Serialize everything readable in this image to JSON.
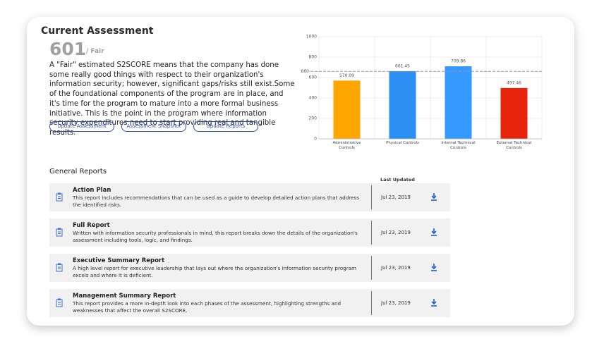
{
  "header": {
    "title": "Current Assessment",
    "score": "601",
    "rating": "/ Fair",
    "description": "A \"Fair\" estimated S2SCORE means that the company has done some really good things with respect to their organization's information security; however, significant gaps/risks still exist.Some of the foundational components of the program are in place, and it's time for the program to mature into a more formal business initiative. This is the point in the program where information security expenditures need to start providing real and tangible results."
  },
  "buttons": [
    "Update Assessment",
    "Assessment Snapshot",
    "Update Reports"
  ],
  "chart_data": {
    "type": "bar",
    "categories": [
      "Administrative Controls",
      "Physical Controls",
      "Internal Technical Controls",
      "External Technical Controls"
    ],
    "values": [
      570.09,
      661.45,
      709.86,
      497.46
    ],
    "colors": [
      "#ffa600",
      "#2b8ff3",
      "#3399ff",
      "#e8240c"
    ],
    "ylim": [
      0,
      1000
    ],
    "yticks": [
      0,
      200,
      400,
      600,
      800,
      1000
    ],
    "grid": true,
    "reference_line": {
      "value": 660,
      "color": "#999999"
    }
  },
  "reports": {
    "title": "General Reports",
    "column_header": "Last Updated",
    "rows": [
      {
        "title": "Action Plan",
        "description": "This report includes recommendations that can be used as a guide to develop detailed action plans that address the identified risks.",
        "date": "Jul 23, 2019"
      },
      {
        "title": "Full Report",
        "description": "Written with information security professionals in mind, this report breaks down the details of the organization's assessment including tools, logic, and findings.",
        "date": "Jul 23, 2019"
      },
      {
        "title": "Executive Summary Report",
        "description": "A high level report for executive leadership that lays out where the organization's information security program excels and where it is deficient.",
        "date": "Jul 23, 2019"
      },
      {
        "title": "Management Summary Report",
        "description": "This report provides a more in-depth look into each phases of the assessment, highlighting strengths and weaknesses that affect the overall S2SCORE.",
        "date": "Jul 23, 2019"
      }
    ]
  }
}
